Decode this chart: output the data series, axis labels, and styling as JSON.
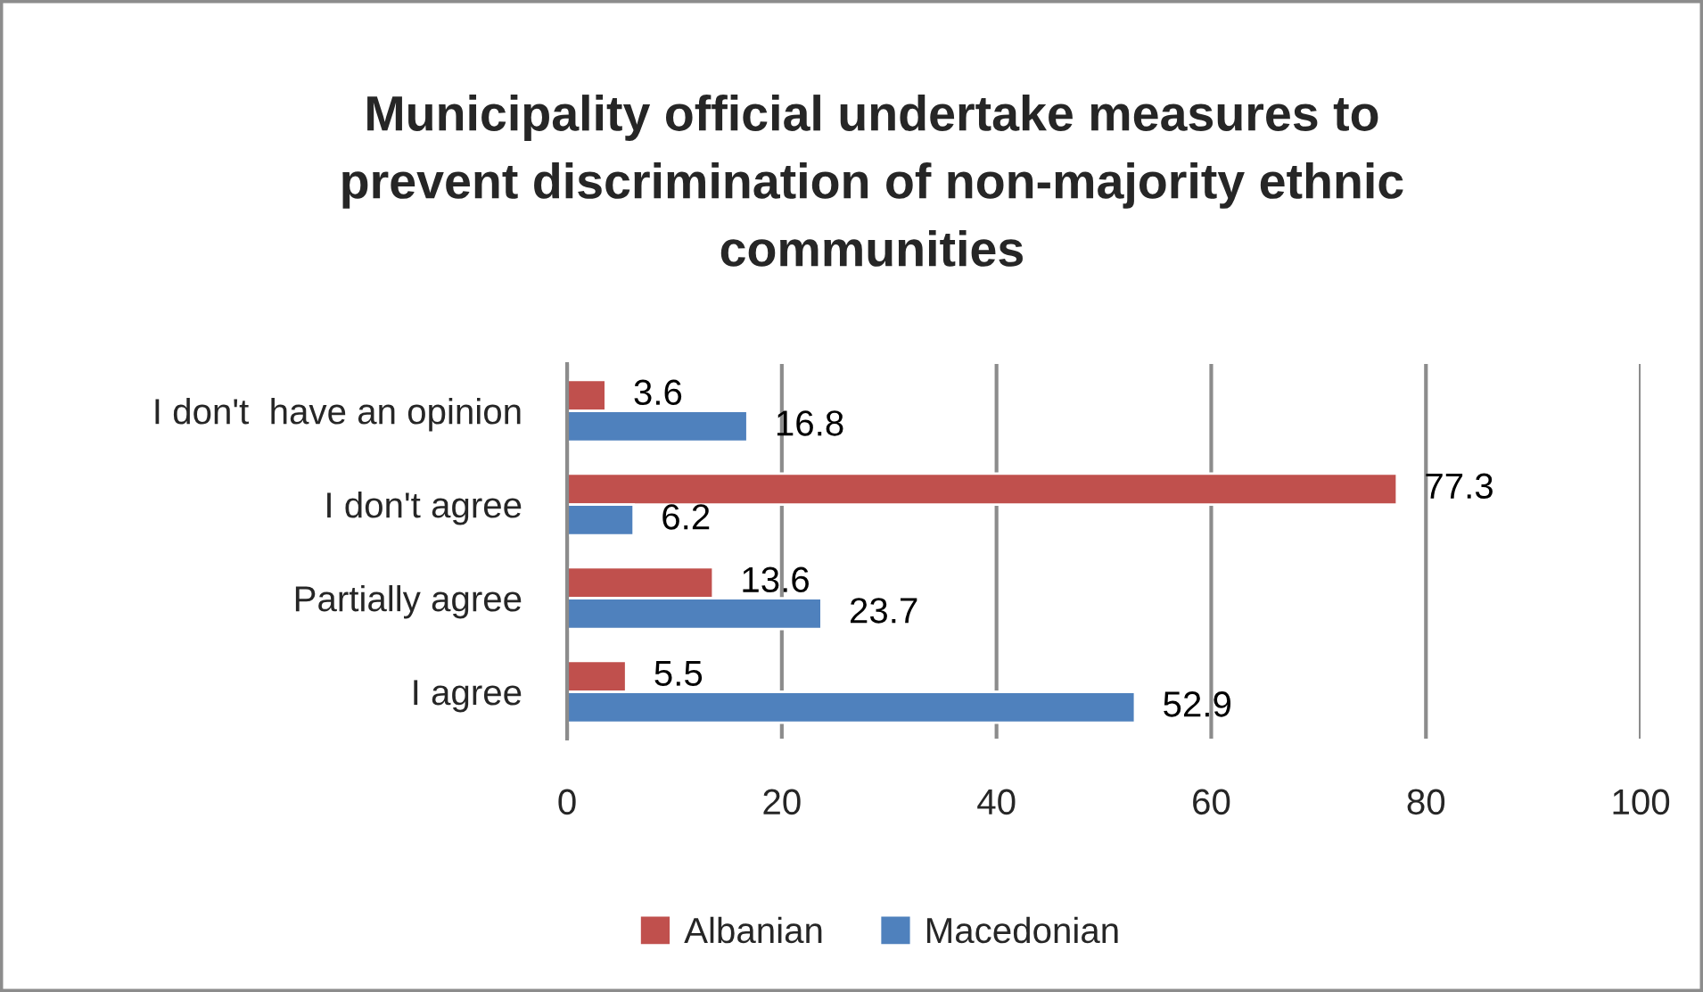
{
  "chart_data": {
    "type": "bar",
    "orientation": "horizontal",
    "title": "Municipality official undertake measures to\nprevent discrimination of non-majority ethnic\ncommunities",
    "categories": [
      "I don't  have an opinion",
      "I don't agree",
      "Partially agree",
      "I agree"
    ],
    "series": [
      {
        "name": "Albanian",
        "color": "#c0504d",
        "values": [
          3.6,
          77.3,
          13.6,
          5.5
        ]
      },
      {
        "name": "Macedonian",
        "color": "#4f81bd",
        "values": [
          16.8,
          6.2,
          23.7,
          52.9
        ]
      }
    ],
    "xlim": [
      0,
      100
    ],
    "xticks": [
      0,
      20,
      40,
      60,
      80,
      100
    ],
    "grid": "x",
    "legend": "bottom",
    "data_labels": true
  }
}
